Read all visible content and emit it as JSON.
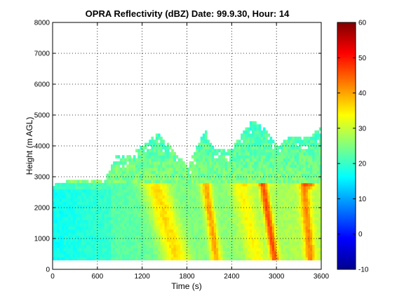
{
  "chart_data": {
    "type": "heatmap",
    "title": "OPRA Reflectivity (dBZ)  Date: 99.9.30, Hour: 14",
    "xlabel": "Time (s)",
    "ylabel": "Height (m AGL)",
    "xlim": [
      0,
      3600
    ],
    "ylim": [
      0,
      8000
    ],
    "xticks": [
      0,
      600,
      1200,
      1800,
      2400,
      3000,
      3600
    ],
    "yticks": [
      0,
      1000,
      2000,
      3000,
      4000,
      5000,
      6000,
      7000,
      8000
    ],
    "grid": true,
    "colormap": "jet",
    "colorbar": {
      "range": [
        -10,
        60
      ],
      "ticks": [
        -10,
        0,
        10,
        20,
        30,
        40,
        50,
        60
      ]
    },
    "field": {
      "x_step_s": 30,
      "y_step_m": 100,
      "y_base_m": 300,
      "y_top_m": 2800,
      "background_dbz_start": 20,
      "background_dbz_end": 29,
      "streaks": [
        {
          "x_at_bottom": 1650,
          "x_at_top": 1350,
          "peak_dbz": 36,
          "width_s": 180
        },
        {
          "x_at_bottom": 2180,
          "x_at_top": 2030,
          "peak_dbz": 40,
          "width_s": 70
        },
        {
          "x_at_bottom": 2960,
          "x_at_top": 2800,
          "peak_dbz": 46,
          "width_s": 60
        },
        {
          "x_at_bottom": 2720,
          "x_at_top": 2500,
          "peak_dbz": 34,
          "width_s": 130
        },
        {
          "x_at_bottom": 3440,
          "x_at_top": 3350,
          "peak_dbz": 42,
          "width_s": 70
        }
      ],
      "bright_band": [
        {
          "x_start": 2500,
          "x_end": 3000,
          "height_m": 2900,
          "peak_dbz": 50
        },
        {
          "x_start": 3300,
          "x_end": 3520,
          "height_m": 2750,
          "peak_dbz": 46
        }
      ],
      "low_echo_region": {
        "x_start": 0,
        "x_end": 750,
        "height_top_m": 2500,
        "dbz": 17
      },
      "cloud_tops": [
        {
          "x": 0,
          "top_m": 2700
        },
        {
          "x": 300,
          "top_m": 2900
        },
        {
          "x": 700,
          "top_m": 2900
        },
        {
          "x": 850,
          "top_m": 3700
        },
        {
          "x": 1000,
          "top_m": 3600
        },
        {
          "x": 1150,
          "top_m": 3900
        },
        {
          "x": 1400,
          "top_m": 4400
        },
        {
          "x": 1600,
          "top_m": 3800
        },
        {
          "x": 1800,
          "top_m": 3300
        },
        {
          "x": 2030,
          "top_m": 4500
        },
        {
          "x": 2150,
          "top_m": 3800
        },
        {
          "x": 2400,
          "top_m": 3900
        },
        {
          "x": 2650,
          "top_m": 4800
        },
        {
          "x": 2850,
          "top_m": 4500
        },
        {
          "x": 3000,
          "top_m": 4000
        },
        {
          "x": 3200,
          "top_m": 4300
        },
        {
          "x": 3400,
          "top_m": 4200
        },
        {
          "x": 3600,
          "top_m": 4600
        }
      ]
    }
  }
}
